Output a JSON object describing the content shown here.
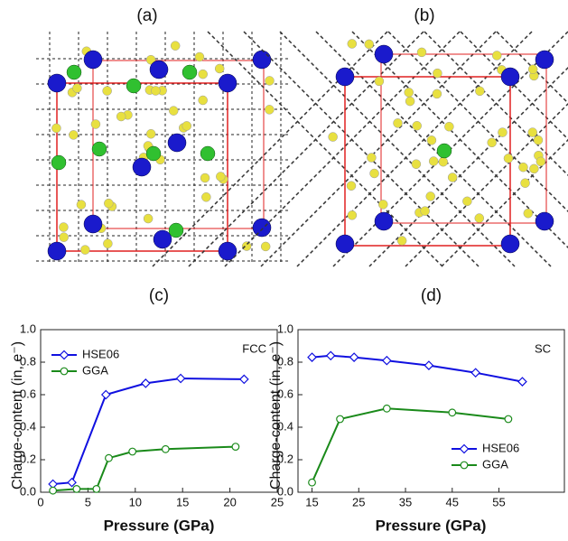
{
  "structure_labels": [
    "(a)",
    "(b)"
  ],
  "chart_data": [
    {
      "type": "line",
      "panel_label": "(c)",
      "annotation": "FCC",
      "x_label": "Pressure (GPa)",
      "y_label": "Charge-content  (in, e⁻)",
      "xlim": [
        0,
        25
      ],
      "xticks": [
        0,
        5,
        10,
        15,
        20,
        25
      ],
      "ylim": [
        0,
        1
      ],
      "yticks": [
        {
          "value": 0,
          "label": "0.0"
        },
        0.2,
        0.4,
        0.6,
        0.8,
        {
          "value": 1,
          "label": "1.0"
        }
      ],
      "legend": "upper-left",
      "series": [
        {
          "name": "HSE06",
          "color": "#1010e0",
          "marker": "diamond",
          "x": [
            1.3,
            3.3,
            6.9,
            11.1,
            14.8,
            21.5
          ],
          "values": [
            0.05,
            0.06,
            0.6,
            0.67,
            0.7,
            0.695
          ]
        },
        {
          "name": "GGA",
          "color": "#1a8a1a",
          "marker": "circle",
          "x": [
            1.3,
            3.8,
            5.9,
            7.2,
            9.7,
            13.2,
            20.6
          ],
          "values": [
            0.01,
            0.02,
            0.02,
            0.21,
            0.25,
            0.265,
            0.28
          ]
        }
      ]
    },
    {
      "type": "line",
      "panel_label": "(d)",
      "annotation": "SC",
      "x_label": "Pressure (GPa)",
      "y_label": "Charge-content  (in, e⁻)",
      "xlim": [
        12,
        69
      ],
      "xticks": [
        15,
        25,
        35,
        45,
        55
      ],
      "ylim": [
        0,
        1
      ],
      "yticks": [
        {
          "value": 0,
          "label": "0.0"
        },
        0.2,
        0.4,
        0.6,
        0.8,
        {
          "value": 1,
          "label": "1.0"
        }
      ],
      "legend": "lower-right",
      "series": [
        {
          "name": "HSE06",
          "color": "#1010e0",
          "marker": "diamond",
          "x": [
            15,
            19,
            24,
            31,
            40,
            50,
            60
          ],
          "values": [
            0.83,
            0.84,
            0.83,
            0.81,
            0.78,
            0.735,
            0.68
          ]
        },
        {
          "name": "GGA",
          "color": "#1a8a1a",
          "marker": "circle",
          "x": [
            15,
            21,
            31,
            45,
            57
          ],
          "values": [
            0.06,
            0.45,
            0.515,
            0.49,
            0.45
          ]
        }
      ]
    }
  ]
}
